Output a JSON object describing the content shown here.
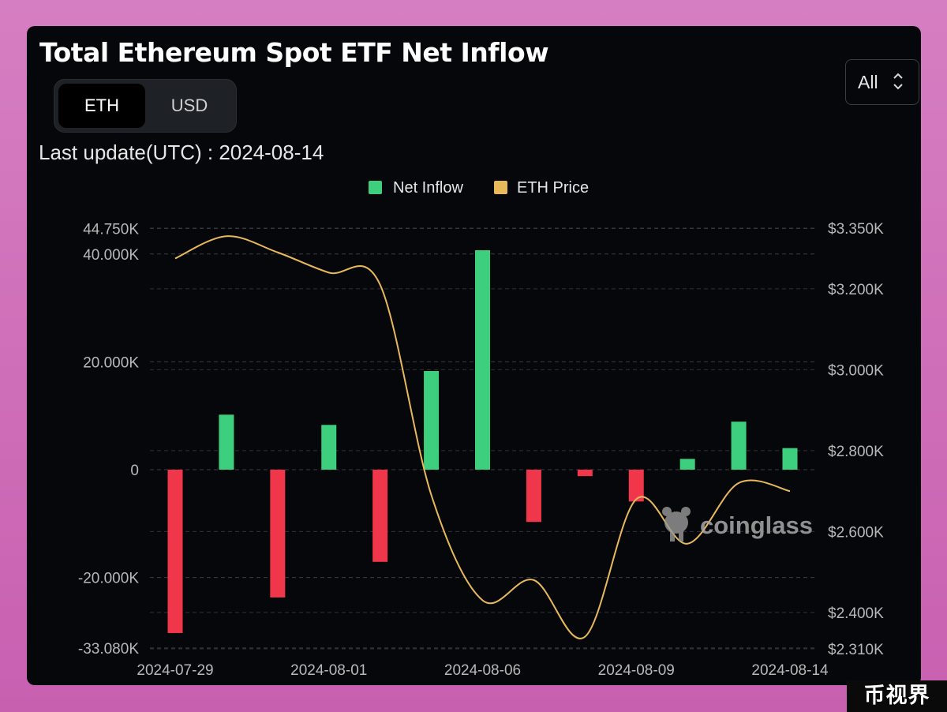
{
  "page": {
    "title": "Total Ethereum Spot ETF Net Inflow",
    "toggle": {
      "eth_label": "ETH",
      "usd_label": "USD",
      "selected": "ETH"
    },
    "last_update": "Last update(UTC) : 2024-08-14",
    "range_select": {
      "value": "All"
    },
    "corner_watermark": "币视界"
  },
  "chart_data": {
    "type": "bar",
    "title": "Total Ethereum Spot ETF Net Inflow",
    "legend": {
      "position": "top-center",
      "entries": [
        "Net Inflow",
        "ETH Price"
      ]
    },
    "categories": [
      "2024-07-29",
      "2024-07-30",
      "2024-07-31",
      "2024-08-01",
      "2024-08-02",
      "2024-08-05",
      "2024-08-06",
      "2024-08-07",
      "2024-08-08",
      "2024-08-09",
      "2024-08-12",
      "2024-08-13",
      "2024-08-14"
    ],
    "x_tick_labels": [
      "2024-07-29",
      "2024-08-01",
      "2024-08-06",
      "2024-08-09",
      "2024-08-14"
    ],
    "series": [
      {
        "name": "Net Inflow",
        "type": "bar",
        "axis": "left",
        "values": [
          -30300,
          10200,
          -23700,
          8300,
          -17100,
          18300,
          40700,
          -9700,
          -1200,
          -5900,
          2000,
          8900,
          4000
        ]
      },
      {
        "name": "ETH Price",
        "type": "line",
        "axis": "right",
        "values": [
          3275,
          3330,
          3290,
          3240,
          3210,
          2690,
          2430,
          2480,
          2340,
          2680,
          2570,
          2720,
          2700
        ]
      }
    ],
    "y_left": {
      "min": -33080,
      "max": 44750,
      "ticks": [
        -33080,
        -20000,
        0,
        20000,
        40000,
        44750
      ],
      "tick_labels": [
        "-33.080K",
        "-20.000K",
        "0",
        "20.000K",
        "40.000K",
        "44.750K"
      ]
    },
    "y_right": {
      "min": 2310,
      "max": 3350,
      "ticks": [
        2310,
        2400,
        2600,
        2800,
        3000,
        3200,
        3350
      ],
      "tick_labels": [
        "$2.310K",
        "$2.400K",
        "$2.600K",
        "$2.800K",
        "$3.000K",
        "$3.200K",
        "$3.350K"
      ]
    },
    "grid": true,
    "colors": {
      "positive": "#3ecf7e",
      "negative": "#f0364a",
      "price_line": "#e8b95a",
      "grid": "#3a3d44"
    },
    "watermark": "coinglass"
  }
}
